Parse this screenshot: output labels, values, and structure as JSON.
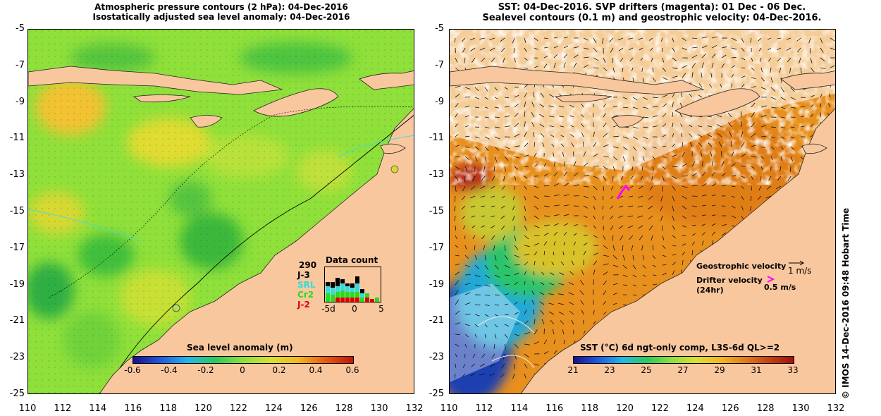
{
  "left_panel": {
    "title_line1": "Atmospheric pressure contours (2 hPa): 04-Dec-2016",
    "title_line2": "Isostatically adjusted sea level anomaly: 04-Dec-2016",
    "colorbar_label": "Sea level anomaly (m)",
    "colorbar_ticks": [
      "-0.6",
      "-0.4",
      "-0.2",
      "0",
      "0.2",
      "0.4",
      "0.6"
    ],
    "data_count": {
      "title": "Data count",
      "total": "290",
      "missions": [
        {
          "name": "J-3",
          "color": "#000000"
        },
        {
          "name": "SRL",
          "color": "#33dddd"
        },
        {
          "name": "Cr2",
          "color": "#22dd22"
        },
        {
          "name": "J-2",
          "color": "#dd0000"
        }
      ],
      "axis_ticks": [
        "-5d",
        "0",
        "5"
      ]
    }
  },
  "right_panel": {
    "title_line1": "SST: 04-Dec-2016. SVP drifters (magenta): 01 Dec - 06 Dec.",
    "title_line2": "Sealevel contours (0.1 m) and geostrophic velocity: 04-Dec-2016.",
    "colorbar_label": "SST (°C) 6d ngt-only comp, L3S-6d QL>=2",
    "colorbar_ticks": [
      "21",
      "23",
      "25",
      "27",
      "29",
      "31",
      "33"
    ],
    "legend": {
      "geostrophic_label": "Geostrophic velocity",
      "geostrophic_scale": "1 m/s",
      "drifter_label": "Drifter velocity",
      "drifter_sub": "(24hr)",
      "drifter_scale": "0.5 m/s",
      "drifter_color": "#ff00ff"
    }
  },
  "axes": {
    "y_ticks": [
      "-5",
      "-7",
      "-9",
      "-11",
      "-13",
      "-15",
      "-17",
      "-19",
      "-21",
      "-23",
      "-25"
    ],
    "x_ticks": [
      "110",
      "112",
      "114",
      "116",
      "118",
      "120",
      "122",
      "124",
      "126",
      "128",
      "130",
      "132"
    ]
  },
  "credit": "©  IMOS 14-Dec-2016 09:48 Hobart Time",
  "colors": {
    "land": "#f9c79e",
    "sla_base": "#8fe03a",
    "sst_base": "#e8901e"
  }
}
